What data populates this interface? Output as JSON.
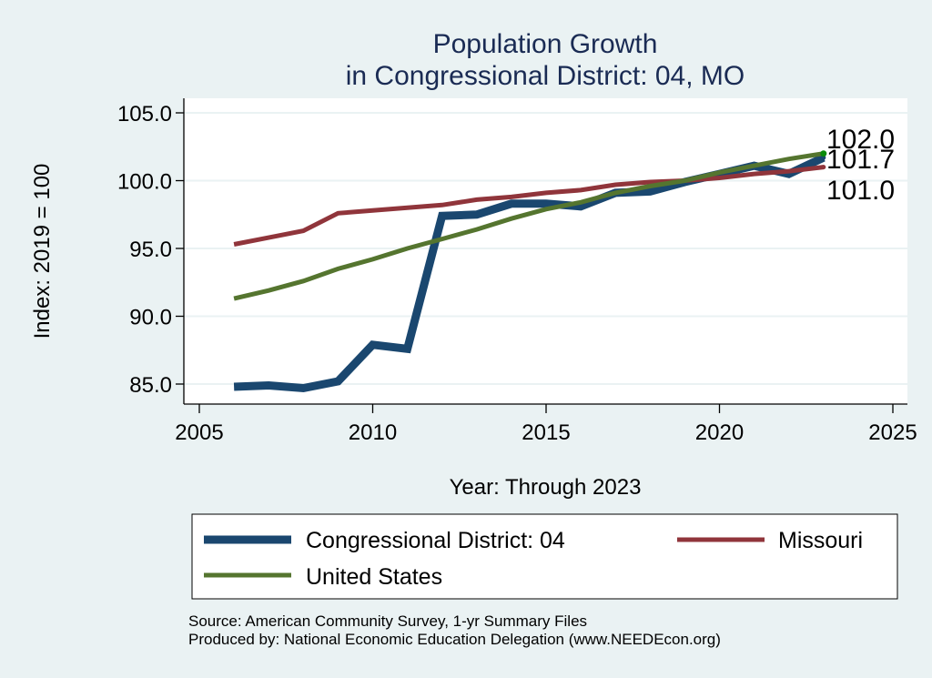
{
  "chart_data": {
    "type": "line",
    "title": "Population Growth",
    "subtitle": "in Congressional District: 04, MO",
    "xlabel": "Year: Through 2023",
    "ylabel": "Index: 2019 = 100",
    "xlim": [
      2005,
      2025
    ],
    "ylim": [
      84,
      106
    ],
    "x_ticks": [
      2005,
      2010,
      2015,
      2020,
      2025
    ],
    "x_tick_labels": [
      "2005",
      "2010",
      "2015",
      "2020",
      "2025"
    ],
    "y_ticks": [
      85,
      90,
      95,
      100,
      105
    ],
    "y_tick_labels": [
      "85.0",
      "90.0",
      "95.0",
      "100.0",
      "105.0"
    ],
    "grid": true,
    "legend_position": "bottom",
    "x": [
      2006,
      2007,
      2008,
      2009,
      2010,
      2011,
      2012,
      2013,
      2014,
      2015,
      2016,
      2017,
      2018,
      2019,
      2020,
      2021,
      2022,
      2023
    ],
    "series": [
      {
        "name": "Congressional District: 04",
        "color": "#1a476f",
        "values": [
          84.8,
          84.9,
          84.7,
          85.2,
          87.9,
          87.6,
          97.4,
          97.5,
          98.3,
          98.3,
          98.1,
          99.1,
          99.2,
          99.9,
          100.5,
          101.1,
          100.5,
          101.7
        ],
        "end_label": "101.7"
      },
      {
        "name": "Missouri",
        "color": "#90353b",
        "values": [
          95.3,
          95.8,
          96.3,
          97.6,
          97.8,
          98.0,
          98.2,
          98.6,
          98.8,
          99.1,
          99.3,
          99.7,
          99.9,
          100.0,
          100.2,
          100.5,
          100.7,
          101.0
        ],
        "end_label": "101.0"
      },
      {
        "name": "United States",
        "color": "#55752f",
        "values": [
          91.3,
          91.9,
          92.6,
          93.5,
          94.2,
          95.0,
          95.7,
          96.4,
          97.2,
          97.9,
          98.4,
          99.1,
          99.6,
          100.0,
          100.6,
          101.1,
          101.6,
          102.0
        ],
        "end_label": "102.0"
      }
    ],
    "notes": [
      "Source: American Community Survey, 1-yr Summary Files",
      "Produced by: National Economic Education Delegation (www.NEEDEcon.org)"
    ]
  },
  "colors": {
    "background": "#eaf2f3",
    "plot_background": "#ffffff",
    "title": "#1a2b54",
    "gridline": "#eaf2f3",
    "endpoint_marker": "#0a8a0a"
  }
}
